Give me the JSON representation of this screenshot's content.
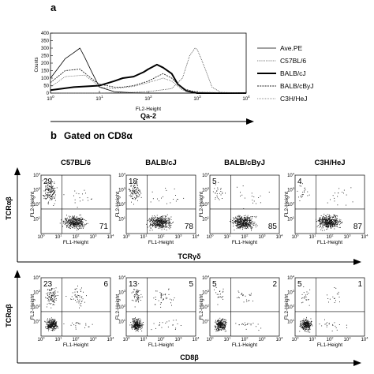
{
  "panel_a": {
    "letter": "a",
    "ylabel": "Counts",
    "xlabel_small": "FL2-Height",
    "xlabel_main": "Qa-2",
    "y_ticks": [
      "0",
      "50",
      "100",
      "150",
      "200",
      "250",
      "300",
      "350",
      "400"
    ],
    "x_ticks": [
      "10",
      "10",
      "10",
      "10",
      "10"
    ],
    "x_tick_exps": [
      "0",
      "1",
      "2",
      "3",
      "4"
    ],
    "legend": [
      "Ave.PE",
      "C57BL/6",
      "BALB/cJ",
      "BALB/cByJ",
      "C3H/HeJ"
    ]
  },
  "panel_b": {
    "letter": "b",
    "gated_prefix": "Gated on CD8",
    "gated_greek": "α",
    "strains": [
      "C57BL/6",
      "BALB/cJ",
      "BALB/cByJ",
      "C3H/HeJ"
    ],
    "row1": {
      "ylabel": "TCRαβ",
      "xlabel_main": "TCRγδ",
      "top_left": [
        "29",
        "18",
        "5",
        "4"
      ],
      "bottom_right": [
        "71",
        "78",
        "85",
        "87"
      ]
    },
    "row2": {
      "ylabel": "TCRαβ",
      "xlabel_main": "CD8β",
      "top_left": [
        "23",
        "13",
        "5",
        "5"
      ],
      "top_right": [
        "6",
        "5",
        "2",
        "1"
      ]
    },
    "fl1": "FL1-Height",
    "fl2": "FL2-Height",
    "tick_base": "10",
    "tick_exps": [
      "0",
      "1",
      "2",
      "3",
      "4"
    ]
  },
  "chart_data": [
    {
      "type": "line",
      "title": "",
      "xlabel": "Qa-2",
      "ylabel": "Counts",
      "xscale": "log",
      "xlim": [
        1,
        10000
      ],
      "ylim": [
        0,
        400
      ],
      "legend_placement": "right",
      "series": [
        {
          "name": "Ave.PE",
          "x": [
            1,
            1.5,
            2,
            3,
            4,
            5,
            7,
            10,
            20,
            50,
            100,
            1000,
            10000
          ],
          "y": [
            100,
            175,
            230,
            270,
            300,
            240,
            140,
            40,
            10,
            2,
            0,
            0,
            0
          ]
        },
        {
          "name": "C57BL/6",
          "x": [
            1,
            10,
            50,
            100,
            300,
            500,
            700,
            900,
            1000,
            1200,
            1500,
            2000,
            3000,
            10000
          ],
          "y": [
            0,
            0,
            5,
            10,
            30,
            100,
            250,
            300,
            290,
            230,
            150,
            40,
            5,
            0
          ]
        },
        {
          "name": "BALB/cJ",
          "x": [
            1,
            3,
            10,
            20,
            30,
            50,
            80,
            100,
            150,
            200,
            300,
            400,
            600,
            1000,
            10000
          ],
          "y": [
            20,
            40,
            50,
            80,
            100,
            110,
            140,
            160,
            190,
            170,
            130,
            60,
            15,
            0,
            0
          ]
        },
        {
          "name": "BALB/cByJ",
          "x": [
            1,
            2,
            4,
            8,
            10,
            20,
            30,
            50,
            100,
            150,
            200,
            300,
            500,
            1000,
            10000
          ],
          "y": [
            70,
            150,
            160,
            80,
            60,
            40,
            40,
            50,
            80,
            110,
            130,
            100,
            30,
            5,
            0
          ]
        },
        {
          "name": "C3H/HeJ",
          "x": [
            1,
            2,
            5,
            8,
            10,
            20,
            50,
            100,
            200,
            300,
            500,
            1000,
            10000
          ],
          "y": [
            40,
            110,
            120,
            70,
            40,
            30,
            45,
            70,
            100,
            80,
            20,
            5,
            0
          ]
        }
      ]
    }
  ]
}
